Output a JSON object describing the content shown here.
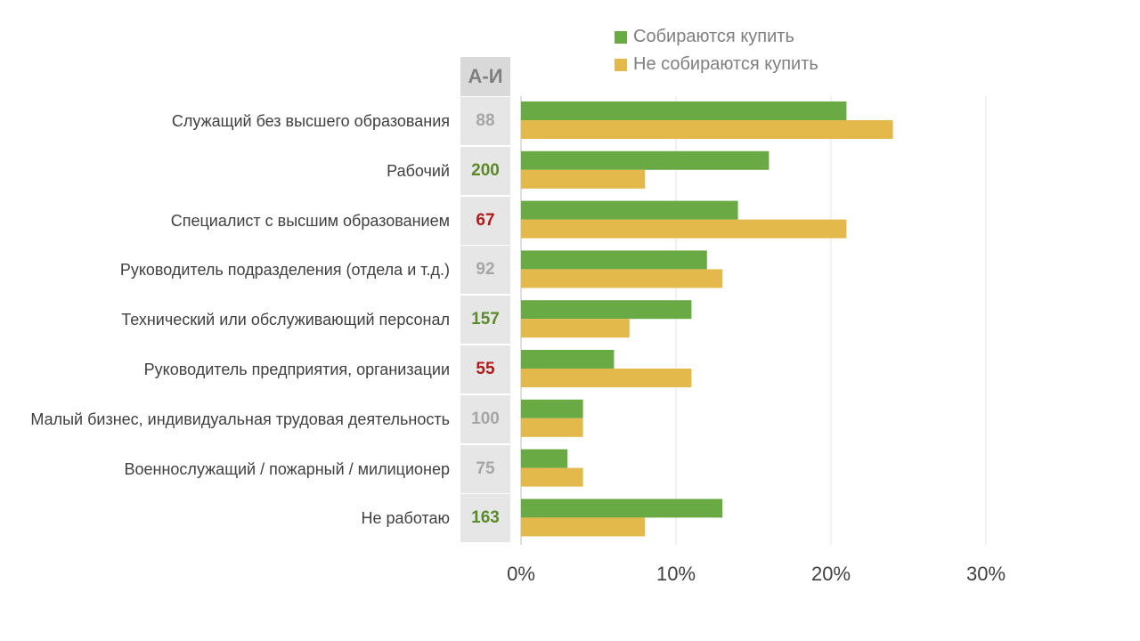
{
  "legend": {
    "buy_label": "Собираются купить",
    "not_buy_label": "Не собираются купить"
  },
  "ai_header": "А-И",
  "colors": {
    "buy": "#6aaa44",
    "not_buy": "#e2b94a",
    "ai_high": "#5a8a2a",
    "ai_low": "#b01a1a",
    "ai_neutral": "#a6a6a6"
  },
  "chart_data": {
    "type": "bar",
    "orientation": "horizontal",
    "categories": [
      "Служащий без высшего образования",
      "Рабочий",
      "Специалист с высшим образованием",
      "Руководитель подразделения (отдела и т.д.)",
      "Технический или обслуживающий персонал",
      "Руководитель предприятия, организации",
      "Малый бизнес, индивидуальная трудовая деятельность",
      "Военнослужащий / пожарный / милиционер",
      "Не работаю"
    ],
    "series": [
      {
        "name": "Собираются купить",
        "values": [
          21,
          16,
          14,
          12,
          11,
          6,
          4,
          3,
          13
        ]
      },
      {
        "name": "Не собираются купить",
        "values": [
          24,
          8,
          21,
          13,
          7,
          11,
          4,
          4,
          8
        ]
      }
    ],
    "ai_index": [
      "88",
      "200",
      "67",
      "92",
      "157",
      "55",
      "100",
      "75",
      "163"
    ],
    "ai_status": [
      "neutral",
      "high",
      "low",
      "neutral",
      "high",
      "low",
      "neutral",
      "neutral",
      "high"
    ],
    "xlim": [
      0,
      30
    ],
    "xticks": [
      "0%",
      "10%",
      "20%",
      "30%"
    ],
    "grid": true,
    "legend_position": "top"
  }
}
